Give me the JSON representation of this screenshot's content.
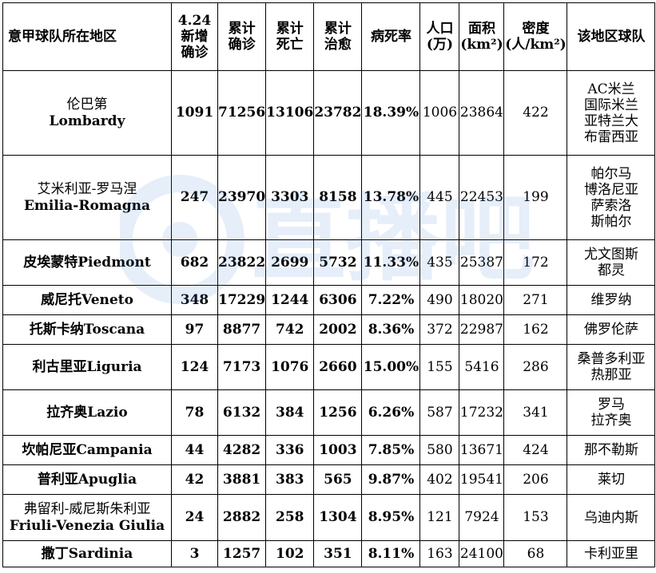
{
  "headers": [
    {
      "lines": [
        "意甲球队所在地区"
      ]
    },
    {
      "lines": [
        "4.24",
        "新增",
        "确诊"
      ]
    },
    {
      "lines": [
        "累计",
        "确诊"
      ]
    },
    {
      "lines": [
        "累计",
        "死亡"
      ]
    },
    {
      "lines": [
        "累计",
        "治愈"
      ]
    },
    {
      "lines": [
        "病死率"
      ]
    },
    {
      "lines": [
        "人口",
        "(万)"
      ]
    },
    {
      "lines": [
        "面积",
        "(km²)"
      ]
    },
    {
      "lines": [
        "密度",
        "(人/km²)"
      ]
    },
    {
      "lines": [
        "该地区球队"
      ]
    }
  ],
  "rows": [
    {
      "region_cn": "伦巴第",
      "region_en": "Lombardy",
      "new": "1091",
      "confirmed": "71256",
      "deaths": "13106",
      "recovered": "23782",
      "fatality": "18.39%",
      "population": "1006",
      "area": "23864",
      "density": "422",
      "teams": [
        "AC米兰",
        "国际米兰",
        "亚特兰大",
        "布雷西亚"
      ]
    },
    {
      "region_cn": "艾米利亚-罗马涅",
      "region_en": "Emilia-Romagna",
      "new": "247",
      "confirmed": "23970",
      "deaths": "3303",
      "recovered": "8158",
      "fatality": "13.78%",
      "population": "445",
      "area": "22453",
      "density": "199",
      "teams": [
        "帕尔马",
        "博洛尼亚",
        "萨索洛",
        "斯帕尔"
      ]
    },
    {
      "region_cn": "皮埃蒙特Piedmont",
      "region_en": "",
      "new": "682",
      "confirmed": "23822",
      "deaths": "2699",
      "recovered": "5732",
      "fatality": "11.33%",
      "population": "435",
      "area": "25387",
      "density": "172",
      "teams": [
        "尤文图斯",
        "都灵"
      ]
    },
    {
      "region_cn": "威尼托Veneto",
      "region_en": "",
      "new": "348",
      "confirmed": "17229",
      "deaths": "1244",
      "recovered": "6306",
      "fatality": "7.22%",
      "population": "490",
      "area": "18020",
      "density": "271",
      "teams": [
        "维罗纳"
      ]
    },
    {
      "region_cn": "托斯卡纳Toscana",
      "region_en": "",
      "new": "97",
      "confirmed": "8877",
      "deaths": "742",
      "recovered": "2002",
      "fatality": "8.36%",
      "population": "372",
      "area": "22987",
      "density": "162",
      "teams": [
        "佛罗伦萨"
      ]
    },
    {
      "region_cn": "利古里亚Liguria",
      "region_en": "",
      "new": "124",
      "confirmed": "7173",
      "deaths": "1076",
      "recovered": "2660",
      "fatality": "15.00%",
      "population": "155",
      "area": "5416",
      "density": "286",
      "teams": [
        "桑普多利亚",
        "热那亚"
      ]
    },
    {
      "region_cn": "拉齐奥Lazio",
      "region_en": "",
      "new": "78",
      "confirmed": "6132",
      "deaths": "384",
      "recovered": "1256",
      "fatality": "6.26%",
      "population": "587",
      "area": "17232",
      "density": "341",
      "teams": [
        "罗马",
        "拉齐奥"
      ]
    },
    {
      "region_cn": "坎帕尼亚Campania",
      "region_en": "",
      "new": "44",
      "confirmed": "4282",
      "deaths": "336",
      "recovered": "1003",
      "fatality": "7.85%",
      "population": "580",
      "area": "13671",
      "density": "424",
      "teams": [
        "那不勒斯"
      ]
    },
    {
      "region_cn": "普利亚Apuglia",
      "region_en": "",
      "new": "42",
      "confirmed": "3881",
      "deaths": "383",
      "recovered": "565",
      "fatality": "9.87%",
      "population": "402",
      "area": "19541",
      "density": "206",
      "teams": [
        "莱切"
      ]
    },
    {
      "region_cn": "弗留利-威尼斯朱利亚",
      "region_en": "Friuli-Venezia Giulia",
      "new": "24",
      "confirmed": "2882",
      "deaths": "258",
      "recovered": "1304",
      "fatality": "8.95%",
      "population": "121",
      "area": "7924",
      "density": "153",
      "teams": [
        "乌迪内斯"
      ]
    },
    {
      "region_cn": "撒丁Sardinia",
      "region_en": "",
      "new": "3",
      "confirmed": "1257",
      "deaths": "102",
      "recovered": "351",
      "fatality": "8.11%",
      "population": "163",
      "area": "24100",
      "density": "68",
      "teams": [
        "卡利亚里"
      ]
    }
  ],
  "watermark": {
    "text": "直播吧",
    "color": "#3d7fd6",
    "icon": "watermark-logo-icon"
  }
}
